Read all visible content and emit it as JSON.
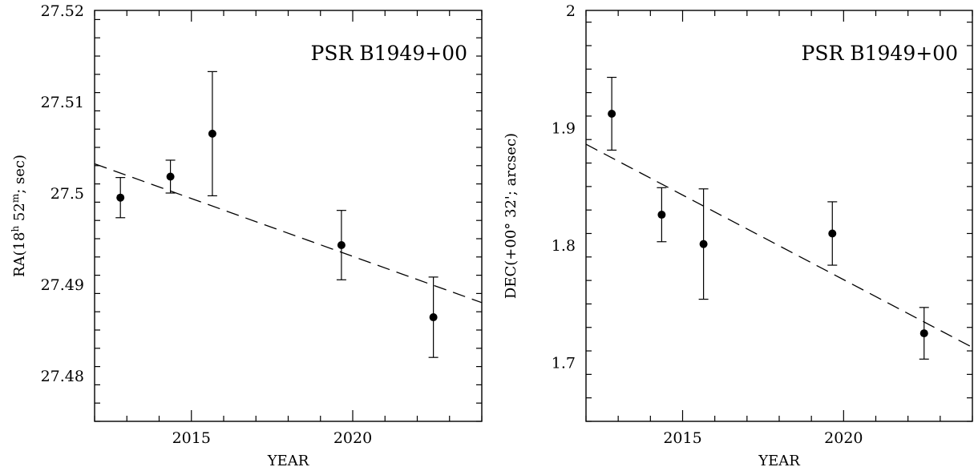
{
  "chart_data": [
    {
      "type": "scatter",
      "annotation": "PSR B1949+00",
      "xlabel": "YEAR",
      "ylabel": "RA(18h 52m; sec)",
      "ylabel_parts": {
        "prefix": "RA(18",
        "sup1": "h",
        "mid": " 52",
        "sup2": "m",
        "suffix": "; sec)"
      },
      "xlim": [
        2012.0,
        2024.0
      ],
      "ylim": [
        27.475,
        27.52
      ],
      "xticks_major": [
        2015,
        2020
      ],
      "xtick_labels": [
        "2015",
        "2020"
      ],
      "yticks_major": [
        27.48,
        27.49,
        27.5,
        27.51,
        27.52
      ],
      "ytick_labels": [
        "27.48",
        "27.49",
        "27.5",
        "27.51",
        "27.52"
      ],
      "points": [
        {
          "x": 2012.8,
          "y": 27.4995,
          "err": 0.0022
        },
        {
          "x": 2014.35,
          "y": 27.5018,
          "err": 0.0018
        },
        {
          "x": 2015.65,
          "y": 27.5065,
          "err": 0.0068
        },
        {
          "x": 2019.65,
          "y": 27.4943,
          "err": 0.0038
        },
        {
          "x": 2022.5,
          "y": 27.4864,
          "err": 0.0044
        }
      ],
      "fit_line": {
        "x": [
          2012.0,
          2024.0
        ],
        "y": [
          27.5032,
          27.488
        ],
        "style": "dashed"
      }
    },
    {
      "type": "scatter",
      "annotation": "PSR B1949+00",
      "xlabel": "YEAR",
      "ylabel": "DEC(+00° 32'; arcsec)",
      "xlim": [
        2012.0,
        2024.0
      ],
      "ylim": [
        1.65,
        2.0
      ],
      "xticks_major": [
        2015,
        2020
      ],
      "xtick_labels": [
        "2015",
        "2020"
      ],
      "yticks_major": [
        1.7,
        1.8,
        1.9,
        2.0
      ],
      "ytick_labels": [
        "1.7",
        "1.8",
        "1.9",
        "2"
      ],
      "points": [
        {
          "x": 2012.8,
          "y": 1.912,
          "err": 0.031
        },
        {
          "x": 2014.35,
          "y": 1.826,
          "err": 0.023
        },
        {
          "x": 2015.65,
          "y": 1.801,
          "err": 0.047
        },
        {
          "x": 2019.65,
          "y": 1.81,
          "err": 0.027
        },
        {
          "x": 2022.5,
          "y": 1.725,
          "err": 0.022
        }
      ],
      "fit_line": {
        "x": [
          2012.0,
          2024.0
        ],
        "y": [
          1.886,
          1.713
        ],
        "style": "dashed"
      }
    }
  ]
}
